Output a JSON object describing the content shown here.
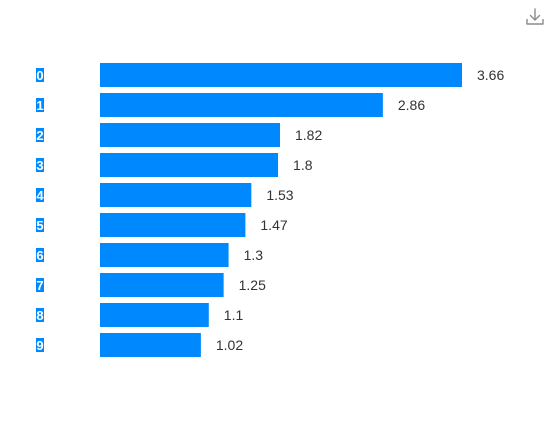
{
  "toolbar": {
    "download_icon": "download-icon"
  },
  "colors": {
    "bar": "#0088ff",
    "label_text": "#333333",
    "category_label_bg": "#0088ff",
    "category_label_text": "#ffffff",
    "icon": "#8c8c8c"
  },
  "chart_data": {
    "type": "bar",
    "orientation": "horizontal",
    "categories": [
      "0",
      "1",
      "2",
      "3",
      "4",
      "5",
      "6",
      "7",
      "8",
      "9"
    ],
    "values": [
      3.66,
      2.86,
      1.82,
      1.8,
      1.53,
      1.47,
      1.3,
      1.25,
      1.1,
      1.02
    ],
    "xlim": [
      0,
      3.66
    ],
    "grid": false,
    "legend": "none",
    "title": "",
    "xlabel": "",
    "ylabel": ""
  }
}
